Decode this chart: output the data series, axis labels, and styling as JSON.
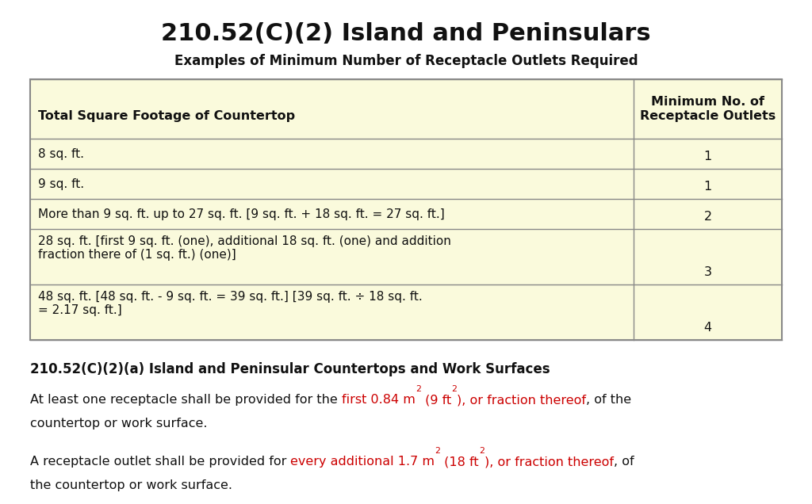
{
  "title": "210.52(C)(2) Island and Peninsulars",
  "table_subtitle": "Examples of Minimum Number of Receptacle Outlets Required",
  "col1_header": "Total Square Footage of Countertop",
  "col2_header": "Minimum No. of\nReceptacle Outlets",
  "rows": [
    {
      "col1": "8 sq. ft.",
      "col2": "1"
    },
    {
      "col1": "9 sq. ft.",
      "col2": "1"
    },
    {
      "col1": "More than 9 sq. ft. up to 27 sq. ft. [9 sq. ft. + 18 sq. ft. = 27 sq. ft.]",
      "col2": "2"
    },
    {
      "col1": "28 sq. ft. [first 9 sq. ft. (one), additional 18 sq. ft. (one) and addition\nfraction there of (1 sq. ft.) (one)]",
      "col2": "3"
    },
    {
      "col1": "48 sq. ft. [48 sq. ft. - 9 sq. ft. = 39 sq. ft.] [39 sq. ft. ÷ 18 sq. ft.\n= 2.17 sq. ft.]",
      "col2": "4"
    }
  ],
  "section_header": "210.52(C)(2)(a) Island and Peninsular Countertops and Work Surfaces",
  "bg_color": "#FFFFFF",
  "table_bg": "#FAFADC",
  "border_color": "#888888",
  "title_color": "#111111",
  "red_color": "#CC0000",
  "text_color": "#111111",
  "col_split": 0.803
}
